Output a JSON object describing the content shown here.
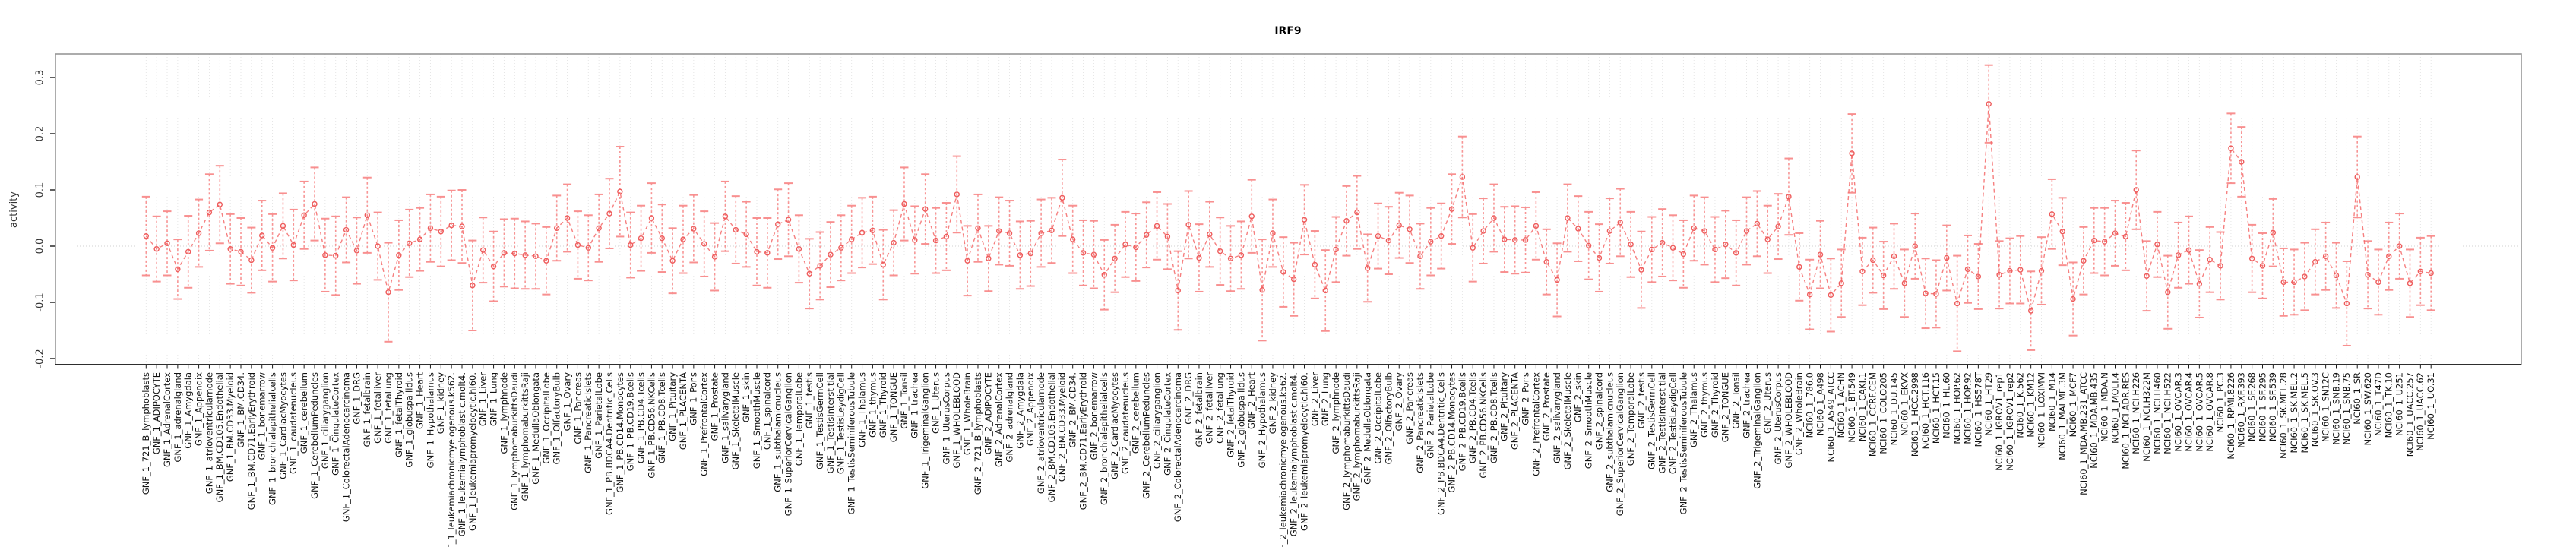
{
  "title": "IRF9",
  "y_axis": {
    "label": "activity",
    "tick_labels": [
      "-0.2",
      "-0.1",
      "0.0",
      "0.1",
      "0.2",
      "0.3"
    ],
    "tick_values": [
      -0.2,
      -0.1,
      0.0,
      0.1,
      0.2,
      0.3
    ]
  },
  "colors": {
    "series_red": "#f46a6a",
    "errorbar_pink": "#f88b8b",
    "marker_red": "#ee5c5c",
    "grid_gray": "#e3e3e3",
    "zero_line_gray": "#d0d0d0",
    "box_gray": "#979797",
    "axis_black": "#1a1a1a",
    "text_dark": "#333333"
  },
  "chart_data": {
    "type": "scatter",
    "subtype": "points-with-error-bars-and-dashed-connecting-line",
    "title": "IRF9",
    "xlabel": "",
    "ylabel": "activity",
    "ylim": [
      -0.211,
      0.342
    ],
    "y_ticks": [
      -0.2,
      -0.1,
      0.0,
      0.1,
      0.2,
      0.3
    ],
    "y_tick_labels": [
      "-0.2",
      "-0.1",
      "0.0",
      "0.1",
      "0.2",
      "0.3"
    ],
    "grid": "vertical-dotted-per-category",
    "zero_line": true,
    "legend_position": "none",
    "categories": [
      "GNF_1_721_B_lymphoblasts",
      "GNF_1_ADIPOCYTE",
      "GNF_1_AdrenalCortex",
      "GNF_1_adrenalgland",
      "GNF_1_Amygdala",
      "GNF_1_Appendix",
      "GNF_1_atrioventricularnode",
      "GNF_1_BM.CD105.Endothelial",
      "GNF_1_BM.CD33.Myeloid",
      "GNF_1_BM.CD34.",
      "GNF_1_BM.CD71.EarlyErythroid",
      "GNF_1_bonemarrow",
      "GNF_1_bronchialepithelialcells",
      "GNF_1_CardiacMyocytes",
      "GNF_1_caudatenucleus",
      "GNF_1_cerebellum",
      "GNF_1_CerebellumPeduncles",
      "GNF_1_ciliaryganglion",
      "GNF_1_CingulateCortex",
      "GNF_1_ColorectalAdenocarcinoma",
      "GNF_1_DRG",
      "GNF_1_fetalbrain",
      "GNF_1_fetalliver",
      "GNF_1_fetallung",
      "GNF_1_fetalThyroid",
      "GNF_1_globuspallidus",
      "GNF_1_Heart",
      "GNF_1_Hypothalamus",
      "GNF_1_kidney",
      "GNF_1_leukemiachronicmyelogenous.k562.",
      "GNF_1_leukemialymphoblastic.molt4.",
      "GNF_1_leukemiapromyelocytic.hl60.",
      "GNF_1_Liver",
      "GNF_1_Lung",
      "GNF_1_lymphnode",
      "GNF_1_lymphomaburkittsDaudi",
      "GNF_1_lymphomaburkittsRaji",
      "GNF_1_MedullaOblongata",
      "GNF_1_OccipitalLobe",
      "GNF_1_OlfactoryBulb",
      "GNF_1_Ovary",
      "GNF_1_Pancreas",
      "GNF_1_PancreaticIslets",
      "GNF_1_ParietalLobe",
      "GNF_1_PB.BDCA4.Dentritic_Cells",
      "GNF_1_PB.CD14.Monocytes",
      "GNF_1_PB.CD19.Bcells",
      "GNF_1_PB.CD4.Tcells",
      "GNF_1_PB.CD56.NKCells",
      "GNF_1_PB.CD8.Tcells",
      "GNF_1_Pituitary",
      "GNF_1_PLACENTA",
      "GNF_1_Pons",
      "GNF_1_PrefrontalCortex",
      "GNF_1_Prostate",
      "GNF_1_salivarygland",
      "GNF_1_SkeletalMuscle",
      "GNF_1_skin",
      "GNF_1_SmoothMuscle",
      "GNF_1_spinalcord",
      "GNF_1_subthalamicnucleus",
      "GNF_1_SuperiorCervicalGanglion",
      "GNF_1_TemporalLobe",
      "GNF_1_testis",
      "GNF_1_TestisGermCell",
      "GNF_1_TestisInterstitial",
      "GNF_1_TestisLeydigCell",
      "GNF_1_TestisSeminiferousTubule",
      "GNF_1_Thalamus",
      "GNF_1_thymus",
      "GNF_1_Thyroid",
      "GNF_1_TONGUE",
      "GNF_1_Tonsil",
      "GNF_1_trachea",
      "GNF_1_TrigeminalGanglion",
      "GNF_1_Uterus",
      "GNF_1_UterusCorpus",
      "GNF_1_WHOLEBLOOD",
      "GNF_1_WholeBrain",
      "GNF_2_721_B_lymphoblasts",
      "GNF_2_ADIPOCYTE",
      "GNF_2_AdrenalCortex",
      "GNF_2_adrenalgland",
      "GNF_2_Amygdala",
      "GNF_2_Appendix",
      "GNF_2_atrioventricularnode",
      "GNF_2_BM.CD105.Endothelial",
      "GNF_2_BM.CD33.Myeloid",
      "GNF_2_BM.CD34.",
      "GNF_2_BM.CD71.EarlyErythroid",
      "GNF_2_bonemarrow",
      "GNF_2_bronchialepithelialcells",
      "GNF_2_CardiacMyocytes",
      "GNF_2_caudatenucleus",
      "GNF_2_cerebellum",
      "GNF_2_CerebellumPeduncles",
      "GNF_2_ciliaryganglion",
      "GNF_2_CingulateCortex",
      "GNF_2_ColorectalAdenocarcinoma",
      "GNF_2_DRG",
      "GNF_2_fetalbrain",
      "GNF_2_fetalliver",
      "GNF_2_fetallung",
      "GNF_2_fetalThyroid",
      "GNF_2_globuspallidus",
      "GNF_2_Heart",
      "GNF_2_Hypothalamus",
      "GNF_2_kidney",
      "GNF_2_leukemiachronicmyelogenous.k562.",
      "GNF_2_leukemialymphoblastic.molt4.",
      "GNF_2_leukemiapromyelocytic.hl60.",
      "GNF_2_Liver",
      "GNF_2_Lung",
      "GNF_2_lymphnode",
      "GNF_2_lymphomaburkittsDaudi",
      "GNF_2_lymphomaburkittsRaji",
      "GNF_2_MedullaOblongata",
      "GNF_2_OccipitalLobe",
      "GNF_2_OlfactoryBulb",
      "GNF_2_Ovary",
      "GNF_2_Pancreas",
      "GNF_2_PancreaticIslets",
      "GNF_2_ParietalLobe",
      "GNF_2_PB.BDCA4.Dentritic_Cells",
      "GNF_2_PB.CD14.Monocytes",
      "GNF_2_PB.CD19.Bcells",
      "GNF_2_PB.CD4.Tcells",
      "GNF_2_PB.CD56.NKCells",
      "GNF_2_PB.CD8.Tcells",
      "GNF_2_Pituitary",
      "GNF_2_PLACENTA",
      "GNF_2_Pons",
      "GNF_2_PrefrontalCortex",
      "GNF_2_Prostate",
      "GNF_2_salivarygland",
      "GNF_2_SkeletalMuscle",
      "GNF_2_skin",
      "GNF_2_SmoothMuscle",
      "GNF_2_spinalcord",
      "GNF_2_subthalamicnucleus",
      "GNF_2_SuperiorCervicalGanglion",
      "GNF_2_TemporalLobe",
      "GNF_2_testis",
      "GNF_2_TestisGermCell",
      "GNF_2_TestisInterstitial",
      "GNF_2_TestisLeydigCell",
      "GNF_2_TestisSeminiferousTubule",
      "GNF_2_Thalamus",
      "GNF_2_thymus",
      "GNF_2_Thyroid",
      "GNF_2_TONGUE",
      "GNF_2_Tonsil",
      "GNF_2_trachea",
      "GNF_2_TrigeminalGanglion",
      "GNF_2_Uterus",
      "GNF_2_UterusCorpus",
      "GNF_2_WHOLEBLOOD",
      "GNF_2_WholeBrain",
      "NCI60_1_786.0",
      "NCI60_1_A498",
      "NCI60_1_A549_ATCC",
      "NCI60_1_ACHN",
      "NCI60_1_BT.549",
      "NCI60_1_CAKI.1",
      "NCI60_1_CCRF.CEM",
      "NCI60_1_COLO205",
      "NCI60_1_DU.145",
      "NCI60_1_EKVX",
      "NCI60_1_HCC.2998",
      "NCI60_1_HCT.116",
      "NCI60_1_HCT.15",
      "NCI60_1_HL.60",
      "NCI60_1_HOP.62",
      "NCI60_1_HOP.92",
      "NCI60_1_HS578T",
      "NCI60_1_HT29",
      "NCI60_1_IGROV1_rep1",
      "NCI60_1_IGROV1_rep2",
      "NCI60_1_K.562",
      "NCI60_1_KM12",
      "NCI60_1_LOXIMVI",
      "NCI60_1_M14",
      "NCI60_1_MALME.3M",
      "NCI60_1_MCF7",
      "NCI60_1_MDA.MB.231_ATCC",
      "NCI60_1_MDA.MB.435",
      "NCI60_1_MDA.N",
      "NCI60_1_MOLT.4",
      "NCI60_1_NCI.ADR.RES",
      "NCI60_1_NCI.H226",
      "NCI60_1_NCI.H322M",
      "NCI60_1_NCI.H460",
      "NCI60_1_NCI.H522",
      "NCI60_1_OVCAR.3",
      "NCI60_1_OVCAR.4",
      "NCI60_1_OVCAR.5",
      "NCI60_1_OVCAR.8",
      "NCI60_1_PC.3",
      "NCI60_1_RPMI.8226",
      "NCI60_1_RXF.393",
      "NCI60_1_SF.268",
      "NCI60_1_SF.295",
      "NCI60_1_SF.539",
      "NCI60_1_SK.MEL.28",
      "NCI60_1_SK.MEL.2",
      "NCI60_1_SK.MEL.5",
      "NCI60_1_SK.OV.3",
      "NCI60_1_SN12C",
      "NCI60_1_SNB.19",
      "NCI60_1_SNB.75",
      "NCI60_1_SR",
      "NCI60_1_SW.620",
      "NCI60_1_T47D",
      "NCI60_1_TK.10",
      "NCI60_1_U251",
      "NCI60_1_UACC.257",
      "NCI60_1_UACC.62",
      "NCI60_1_UO.31"
    ],
    "values": [
      0.018,
      -0.005,
      0.005,
      -0.041,
      -0.01,
      0.023,
      0.06,
      0.074,
      -0.005,
      -0.01,
      -0.025,
      0.019,
      -0.003,
      0.036,
      0.002,
      0.055,
      0.075,
      -0.016,
      -0.017,
      0.029,
      -0.008,
      0.055,
      0.0,
      -0.082,
      -0.016,
      0.005,
      0.012,
      0.032,
      0.026,
      0.037,
      0.035,
      -0.07,
      -0.007,
      -0.036,
      -0.012,
      -0.013,
      -0.016,
      -0.018,
      -0.026,
      0.032,
      0.05,
      0.002,
      -0.003,
      0.032,
      0.058,
      0.097,
      0.002,
      0.014,
      0.05,
      0.014,
      -0.026,
      0.012,
      0.031,
      0.004,
      -0.019,
      0.053,
      0.029,
      0.021,
      -0.01,
      -0.012,
      0.039,
      0.047,
      -0.005,
      -0.049,
      -0.035,
      -0.015,
      -0.003,
      0.012,
      0.024,
      0.028,
      -0.033,
      0.006,
      0.075,
      0.011,
      0.066,
      0.01,
      0.017,
      0.092,
      -0.026,
      0.032,
      -0.022,
      0.027,
      0.023,
      -0.016,
      -0.013,
      0.023,
      0.028,
      0.086,
      0.012,
      -0.012,
      -0.015,
      -0.051,
      -0.022,
      0.003,
      -0.002,
      0.02,
      0.036,
      0.017,
      -0.079,
      0.038,
      -0.021,
      0.021,
      -0.009,
      -0.022,
      -0.016,
      0.053,
      -0.078,
      0.023,
      -0.046,
      -0.059,
      0.047,
      -0.033,
      -0.079,
      -0.006,
      0.045,
      0.06,
      -0.039,
      0.018,
      0.01,
      0.037,
      0.03,
      -0.018,
      0.008,
      0.018,
      0.066,
      0.123,
      -0.003,
      0.027,
      0.05,
      0.012,
      0.011,
      0.011,
      0.036,
      -0.028,
      -0.06,
      0.05,
      0.031,
      0.001,
      -0.021,
      0.027,
      0.042,
      0.003,
      -0.042,
      -0.006,
      0.006,
      -0.003,
      -0.014,
      0.032,
      0.027,
      -0.006,
      0.003,
      -0.012,
      0.027,
      0.04,
      0.012,
      0.035,
      0.088,
      -0.037,
      -0.086,
      -0.015,
      -0.087,
      -0.066,
      0.165,
      -0.045,
      -0.025,
      -0.052,
      -0.018,
      -0.066,
      0.0,
      -0.084,
      -0.085,
      -0.021,
      -0.102,
      -0.041,
      -0.054,
      0.253,
      -0.051,
      -0.044,
      -0.042,
      -0.115,
      -0.044,
      0.057,
      0.026,
      -0.094,
      -0.026,
      0.01,
      0.008,
      0.023,
      0.017,
      0.1,
      -0.053,
      0.003,
      -0.082,
      -0.016,
      -0.007,
      -0.067,
      -0.024,
      -0.035,
      0.174,
      0.15,
      -0.022,
      -0.035,
      0.024,
      -0.064,
      -0.064,
      -0.054,
      -0.028,
      -0.018,
      -0.052,
      -0.102,
      0.123,
      -0.051,
      -0.064,
      -0.018,
      0.0,
      -0.066,
      -0.045,
      -0.048
    ],
    "errors": [
      0.07,
      0.058,
      0.057,
      0.053,
      0.064,
      0.06,
      0.068,
      0.069,
      0.062,
      0.06,
      0.058,
      0.062,
      0.06,
      0.058,
      0.063,
      0.06,
      0.065,
      0.065,
      0.07,
      0.058,
      0.059,
      0.067,
      0.06,
      0.088,
      0.062,
      0.06,
      0.056,
      0.06,
      0.062,
      0.062,
      0.065,
      0.08,
      0.058,
      0.062,
      0.06,
      0.062,
      0.06,
      0.058,
      0.06,
      0.058,
      0.06,
      0.06,
      0.058,
      0.06,
      0.062,
      0.08,
      0.058,
      0.058,
      0.062,
      0.06,
      0.058,
      0.06,
      0.06,
      0.058,
      0.06,
      0.062,
      0.06,
      0.058,
      0.06,
      0.062,
      0.062,
      0.065,
      0.06,
      0.062,
      0.06,
      0.058,
      0.058,
      0.06,
      0.062,
      0.06,
      0.062,
      0.058,
      0.065,
      0.06,
      0.062,
      0.058,
      0.06,
      0.068,
      0.062,
      0.06,
      0.058,
      0.06,
      0.058,
      0.06,
      0.058,
      0.06,
      0.058,
      0.068,
      0.06,
      0.058,
      0.06,
      0.062,
      0.06,
      0.058,
      0.06,
      0.058,
      0.06,
      0.058,
      0.07,
      0.06,
      0.06,
      0.058,
      0.06,
      0.058,
      0.06,
      0.065,
      0.09,
      0.06,
      0.062,
      0.065,
      0.062,
      0.06,
      0.072,
      0.058,
      0.062,
      0.065,
      0.06,
      0.058,
      0.06,
      0.058,
      0.06,
      0.058,
      0.06,
      0.058,
      0.062,
      0.072,
      0.06,
      0.058,
      0.06,
      0.058,
      0.06,
      0.058,
      0.06,
      0.058,
      0.065,
      0.06,
      0.058,
      0.06,
      0.06,
      0.058,
      0.06,
      0.058,
      0.068,
      0.058,
      0.06,
      0.058,
      0.06,
      0.058,
      0.06,
      0.058,
      0.06,
      0.058,
      0.06,
      0.058,
      0.06,
      0.058,
      0.068,
      0.06,
      0.062,
      0.06,
      0.065,
      0.06,
      0.07,
      0.06,
      0.058,
      0.06,
      0.058,
      0.06,
      0.058,
      0.062,
      0.06,
      0.058,
      0.085,
      0.06,
      0.058,
      0.069,
      0.06,
      0.058,
      0.06,
      0.07,
      0.06,
      0.062,
      0.06,
      0.065,
      0.06,
      0.058,
      0.06,
      0.058,
      0.06,
      0.07,
      0.062,
      0.058,
      0.065,
      0.058,
      0.06,
      0.06,
      0.058,
      0.06,
      0.062,
      0.062,
      0.06,
      0.058,
      0.06,
      0.06,
      0.058,
      0.06,
      0.058,
      0.06,
      0.058,
      0.075,
      0.072,
      0.06,
      0.058,
      0.06,
      0.058,
      0.06,
      0.06,
      0.066
    ]
  }
}
